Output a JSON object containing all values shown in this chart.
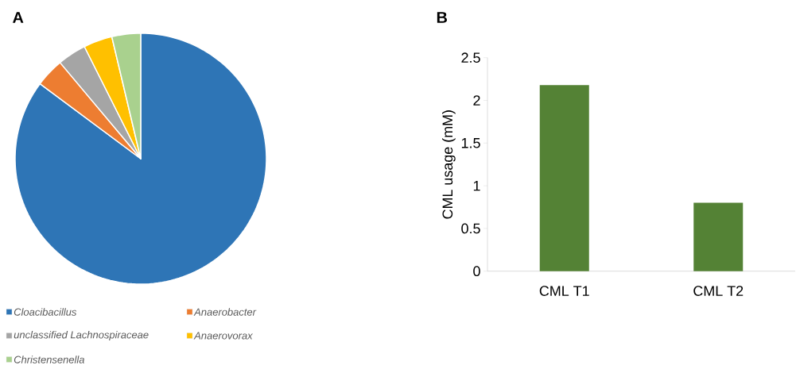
{
  "chart_data": [
    {
      "type": "pie",
      "title": "A",
      "categories": [
        "Cloacibacillus",
        "Anaerobacter",
        "unclassified Lachnospiraceae",
        "Anaerovorax",
        "Christensenella"
      ],
      "values": [
        85.2,
        3.7,
        3.7,
        3.7,
        3.7
      ],
      "colors": [
        "#2e75b6",
        "#ed7d31",
        "#a5a5a5",
        "#ffc000",
        "#a9d18e"
      ],
      "legend": "bottom"
    },
    {
      "type": "bar",
      "title": "B",
      "categories": [
        "CML T1",
        "CML T2"
      ],
      "values": [
        2.18,
        0.8
      ],
      "color": "#548235",
      "ylabel": "CML usage (mM)",
      "ylim": [
        0,
        2.5
      ],
      "yticks": [
        0,
        0.5,
        1,
        1.5,
        2,
        2.5
      ],
      "grid": false
    }
  ]
}
